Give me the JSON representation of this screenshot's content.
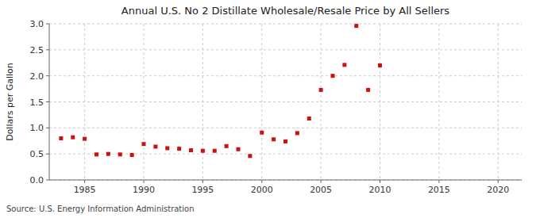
{
  "chart_data": {
    "type": "scatter",
    "title": "Annual U.S. No 2 Distillate Wholesale/Resale Price by All Sellers",
    "ylabel": "Dollars per Gallon",
    "annotations": [
      "Source: U.S. Energy Information Administration"
    ],
    "x": [
      1983,
      1984,
      1985,
      1986,
      1987,
      1988,
      1989,
      1990,
      1991,
      1992,
      1993,
      1994,
      1995,
      1996,
      1997,
      1998,
      1999,
      2000,
      2001,
      2002,
      2003,
      2004,
      2005,
      2006,
      2007,
      2008,
      2009,
      2010
    ],
    "values": [
      0.8,
      0.82,
      0.79,
      0.49,
      0.5,
      0.49,
      0.48,
      0.69,
      0.64,
      0.61,
      0.6,
      0.57,
      0.56,
      0.56,
      0.65,
      0.59,
      0.46,
      0.91,
      0.78,
      0.74,
      0.9,
      1.18,
      1.73,
      2.0,
      2.21,
      2.96,
      1.73,
      2.2
    ],
    "color": "#cc1111",
    "marker": "square",
    "xlim": [
      1982,
      2022
    ],
    "ylim": [
      0.0,
      3.0
    ],
    "xticks": [
      1985,
      1990,
      1995,
      2000,
      2005,
      2010,
      2015,
      2020
    ],
    "yticks": [
      {
        "value": 0.0,
        "label": "0.0"
      },
      0.5,
      {
        "value": 1.0,
        "label": "1.0"
      },
      1.5,
      {
        "value": 2.0,
        "label": "2.0"
      },
      2.5,
      {
        "value": 3.0,
        "label": "3.0"
      }
    ],
    "grid": true
  }
}
